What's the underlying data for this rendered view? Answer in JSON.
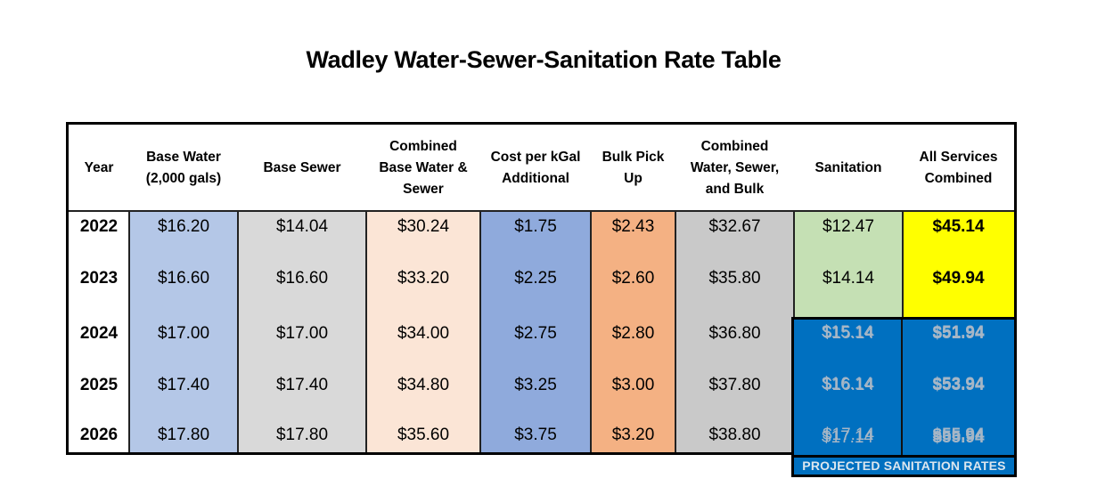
{
  "title": "Wadley Water-Sewer-Sanitation Rate Table",
  "table": {
    "columns": [
      {
        "key": "year",
        "header": [
          "Year"
        ],
        "bg": "#ffffff"
      },
      {
        "key": "base_water",
        "header": [
          "Base Water",
          "(2,000 gals)"
        ],
        "bg": "#b4c7e7"
      },
      {
        "key": "base_sewer",
        "header": [
          "Base Sewer"
        ],
        "bg": "#d9d9d9"
      },
      {
        "key": "combined_ws",
        "header": [
          "Combined",
          "Base Water &",
          "Sewer"
        ],
        "bg": "#fbe5d6"
      },
      {
        "key": "cost_kgal",
        "header": [
          "Cost per kGal",
          "Additional"
        ],
        "bg": "#8faadc"
      },
      {
        "key": "bulk",
        "header": [
          "Bulk Pick",
          "Up"
        ],
        "bg": "#f4b183"
      },
      {
        "key": "combined_wsb",
        "header": [
          "Combined",
          "Water, Sewer,",
          "and Bulk"
        ],
        "bg": "#c9c9c9"
      },
      {
        "key": "sanitation",
        "header": [
          "Sanitation"
        ],
        "bg": "#c5e0b4"
      },
      {
        "key": "all",
        "header": [
          "All Services",
          "Combined"
        ],
        "bg": "#ffff00"
      }
    ],
    "rows": [
      {
        "year": "2022",
        "base_water": "$16.20",
        "base_sewer": "$14.04",
        "combined_ws": "$30.24",
        "cost_kgal": "$1.75",
        "bulk": "$2.43",
        "combined_wsb": "$32.67",
        "sanitation": "$12.47",
        "all": "$45.14",
        "projected": false
      },
      {
        "year": "2023",
        "base_water": "$16.60",
        "base_sewer": "$16.60",
        "combined_ws": "$33.20",
        "cost_kgal": "$2.25",
        "bulk": "$2.60",
        "combined_wsb": "$35.80",
        "sanitation": "$14.14",
        "all": "$49.94",
        "projected": false
      },
      {
        "year": "2024",
        "base_water": "$17.00",
        "base_sewer": "$17.00",
        "combined_ws": "$34.00",
        "cost_kgal": "$2.75",
        "bulk": "$2.80",
        "combined_wsb": "$36.80",
        "sanitation": "$15.14",
        "all": "$51.94",
        "projected": true
      },
      {
        "year": "2025",
        "base_water": "$17.40",
        "base_sewer": "$17.40",
        "combined_ws": "$34.80",
        "cost_kgal": "$3.25",
        "bulk": "$3.00",
        "combined_wsb": "$37.80",
        "sanitation": "$16.14",
        "all": "$53.94",
        "projected": true
      },
      {
        "year": "2026",
        "base_water": "$17.80",
        "base_sewer": "$17.80",
        "combined_ws": "$35.60",
        "cost_kgal": "$3.75",
        "bulk": "$3.20",
        "combined_wsb": "$38.80",
        "sanitation": "$17.14",
        "all": "$55.94",
        "projected": true
      }
    ],
    "projected_bg": "#0070c0",
    "projected_label": "PROJECTED SANITATION RATES"
  }
}
